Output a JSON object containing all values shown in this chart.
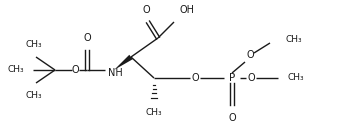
{
  "bg_color": "#ffffff",
  "line_color": "#1a1a1a",
  "line_width": 1.0,
  "font_size": 7.0,
  "figsize": [
    3.54,
    1.38
  ],
  "dpi": 100,
  "xlim": [
    0,
    354
  ],
  "ylim": [
    0,
    138
  ]
}
